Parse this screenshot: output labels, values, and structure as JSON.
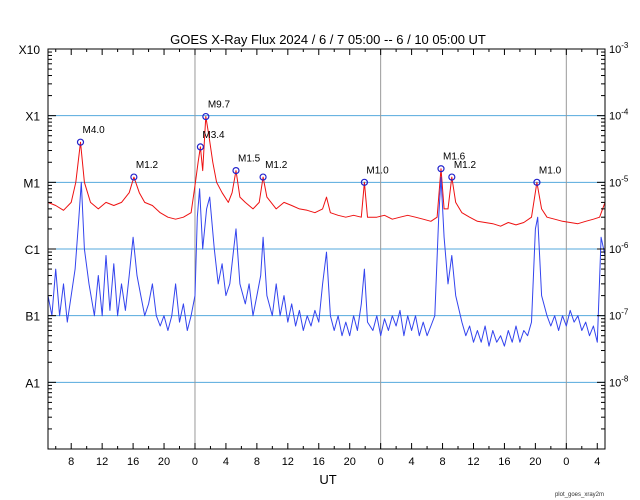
{
  "chart_data": {
    "type": "line",
    "title": "GOES X-Ray Flux   2024 /  6  /  7   05:00 --  6  / 10   05:00   UT",
    "xlabel": "UT",
    "x_tick_labels": [
      "8",
      "12",
      "16",
      "20",
      "0",
      "4",
      "8",
      "12",
      "16",
      "20",
      "0",
      "4",
      "8",
      "12",
      "16",
      "20",
      "0",
      "4"
    ],
    "x_tick_hours": [
      8,
      12,
      16,
      20,
      24,
      28,
      32,
      36,
      40,
      44,
      48,
      52,
      56,
      60,
      64,
      68,
      72,
      76
    ],
    "day_boundaries_hours": [
      24,
      48,
      72
    ],
    "xlim_hours": [
      5,
      77
    ],
    "y_scale": "log",
    "ylim": [
      1e-09,
      0.001
    ],
    "left_class_labels": [
      "A1",
      "B1",
      "C1",
      "M1",
      "X1",
      "X10"
    ],
    "right_tick_labels": [
      {
        "base": "10",
        "exp": "-8"
      },
      {
        "base": "10",
        "exp": "-7"
      },
      {
        "base": "10",
        "exp": "-6"
      },
      {
        "base": "10",
        "exp": "-5"
      },
      {
        "base": "10",
        "exp": "-4"
      },
      {
        "base": "10",
        "exp": "-3"
      }
    ],
    "colors": {
      "long": "#ee1111",
      "short": "#3344ee",
      "grid": "#55aadd",
      "day_line": "#999999",
      "marker": "#2222cc"
    },
    "flares": [
      {
        "label": "M4.0",
        "t": 9.2,
        "flux": 4e-05
      },
      {
        "label": "M1.2",
        "t": 16.1,
        "flux": 1.2e-05
      },
      {
        "label": "M3.4",
        "t": 24.7,
        "flux": 3.4e-05
      },
      {
        "label": "M9.7",
        "t": 25.4,
        "flux": 9.7e-05
      },
      {
        "label": "M1.5",
        "t": 29.3,
        "flux": 1.5e-05
      },
      {
        "label": "M1.2",
        "t": 32.8,
        "flux": 1.2e-05
      },
      {
        "label": "M1.0",
        "t": 45.9,
        "flux": 1e-05
      },
      {
        "label": "M1.6",
        "t": 55.8,
        "flux": 1.6e-05
      },
      {
        "label": "M1.2",
        "t": 57.2,
        "flux": 1.2e-05
      },
      {
        "label": "M1.0",
        "t": 68.2,
        "flux": 1e-05
      }
    ],
    "series": [
      {
        "band": "long",
        "points": [
          [
            5,
            5e-06
          ],
          [
            6,
            4.5e-06
          ],
          [
            7,
            3.8e-06
          ],
          [
            8,
            5e-06
          ],
          [
            8.6,
            1e-05
          ],
          [
            9.2,
            4e-05
          ],
          [
            9.7,
            1e-05
          ],
          [
            10.5,
            5e-06
          ],
          [
            11.5,
            4e-06
          ],
          [
            12.5,
            5e-06
          ],
          [
            13.5,
            4.5e-06
          ],
          [
            14.5,
            5e-06
          ],
          [
            15.5,
            7e-06
          ],
          [
            16.1,
            1.2e-05
          ],
          [
            16.8,
            7e-06
          ],
          [
            17.5,
            5e-06
          ],
          [
            18.5,
            4.5e-06
          ],
          [
            19.5,
            3.5e-06
          ],
          [
            20.5,
            3e-06
          ],
          [
            21.5,
            2.8e-06
          ],
          [
            22.5,
            3e-06
          ],
          [
            23.5,
            3.5e-06
          ],
          [
            24.0,
            9e-06
          ],
          [
            24.4,
            2e-05
          ],
          [
            24.7,
            3.4e-05
          ],
          [
            25.0,
            1.5e-05
          ],
          [
            25.4,
            9.7e-05
          ],
          [
            25.8,
            5e-05
          ],
          [
            26.3,
            2e-05
          ],
          [
            26.8,
            1e-05
          ],
          [
            27.5,
            7e-06
          ],
          [
            28.3,
            5e-06
          ],
          [
            28.8,
            7e-06
          ],
          [
            29.3,
            1.5e-05
          ],
          [
            29.8,
            6e-06
          ],
          [
            30.5,
            5e-06
          ],
          [
            31.5,
            4e-06
          ],
          [
            32.3,
            5e-06
          ],
          [
            32.8,
            1.2e-05
          ],
          [
            33.3,
            6e-06
          ],
          [
            34.5,
            4e-06
          ],
          [
            35.5,
            5e-06
          ],
          [
            36.5,
            4.5e-06
          ],
          [
            37.5,
            4e-06
          ],
          [
            38.5,
            3.8e-06
          ],
          [
            39.5,
            3.5e-06
          ],
          [
            40.5,
            4e-06
          ],
          [
            41.0,
            6e-06
          ],
          [
            41.5,
            3.5e-06
          ],
          [
            42.5,
            3.2e-06
          ],
          [
            43.5,
            3e-06
          ],
          [
            44.5,
            3.2e-06
          ],
          [
            45.5,
            3e-06
          ],
          [
            45.9,
            1e-05
          ],
          [
            46.3,
            3e-06
          ],
          [
            47.5,
            3e-06
          ],
          [
            48.5,
            3.2e-06
          ],
          [
            49.5,
            2.8e-06
          ],
          [
            50.5,
            3e-06
          ],
          [
            51.5,
            3.2e-06
          ],
          [
            52.5,
            3e-06
          ],
          [
            53.5,
            2.8e-06
          ],
          [
            54.5,
            2.6e-06
          ],
          [
            55.3,
            3e-06
          ],
          [
            55.8,
            1.6e-05
          ],
          [
            56.2,
            4e-06
          ],
          [
            56.7,
            4e-06
          ],
          [
            57.2,
            1.2e-05
          ],
          [
            57.7,
            5e-06
          ],
          [
            58.5,
            3.5e-06
          ],
          [
            59.5,
            3e-06
          ],
          [
            60.5,
            2.6e-06
          ],
          [
            61.5,
            2.5e-06
          ],
          [
            62.5,
            2.4e-06
          ],
          [
            63.5,
            2.2e-06
          ],
          [
            64.5,
            2.5e-06
          ],
          [
            65.5,
            2.3e-06
          ],
          [
            66.5,
            2.5e-06
          ],
          [
            67.5,
            3e-06
          ],
          [
            68.2,
            1e-05
          ],
          [
            68.8,
            4e-06
          ],
          [
            69.5,
            3e-06
          ],
          [
            70.5,
            2.8e-06
          ],
          [
            71.5,
            2.6e-06
          ],
          [
            72.5,
            2.5e-06
          ],
          [
            73.5,
            2.4e-06
          ],
          [
            74.5,
            2.6e-06
          ],
          [
            75.5,
            2.8e-06
          ],
          [
            76.3,
            3e-06
          ],
          [
            77,
            5e-06
          ]
        ]
      },
      {
        "band": "short",
        "points": [
          [
            5,
            2e-07
          ],
          [
            5.5,
            1e-07
          ],
          [
            6,
            5e-07
          ],
          [
            6.5,
            1e-07
          ],
          [
            7,
            3e-07
          ],
          [
            7.5,
            8e-08
          ],
          [
            8,
            2e-07
          ],
          [
            8.5,
            5e-07
          ],
          [
            9.0,
            3e-06
          ],
          [
            9.3,
            1e-05
          ],
          [
            9.7,
            1e-06
          ],
          [
            10.3,
            3e-07
          ],
          [
            11,
            1e-07
          ],
          [
            11.5,
            4e-07
          ],
          [
            12,
            1e-07
          ],
          [
            12.5,
            8e-07
          ],
          [
            13,
            1.2e-07
          ],
          [
            13.5,
            6e-07
          ],
          [
            14,
            1e-07
          ],
          [
            14.5,
            3e-07
          ],
          [
            15,
            1.2e-07
          ],
          [
            15.5,
            4e-07
          ],
          [
            16.0,
            1.5e-06
          ],
          [
            16.5,
            4e-07
          ],
          [
            17,
            2e-07
          ],
          [
            17.5,
            1e-07
          ],
          [
            18,
            1.5e-07
          ],
          [
            18.5,
            3e-07
          ],
          [
            19,
            1e-07
          ],
          [
            19.5,
            7e-08
          ],
          [
            20,
            1e-07
          ],
          [
            20.5,
            6e-08
          ],
          [
            21,
            1e-07
          ],
          [
            21.5,
            3e-07
          ],
          [
            22,
            8e-08
          ],
          [
            22.5,
            1.5e-07
          ],
          [
            23,
            6e-08
          ],
          [
            23.5,
            1e-07
          ],
          [
            24.0,
            2e-07
          ],
          [
            24.3,
            3e-06
          ],
          [
            24.6,
            8e-06
          ],
          [
            25.0,
            1e-06
          ],
          [
            25.5,
            4e-06
          ],
          [
            25.9,
            6e-06
          ],
          [
            26.5,
            1e-06
          ],
          [
            27,
            3e-07
          ],
          [
            27.5,
            6e-07
          ],
          [
            28,
            2e-07
          ],
          [
            28.5,
            3e-07
          ],
          [
            29.0,
            1e-06
          ],
          [
            29.3,
            2e-06
          ],
          [
            29.8,
            3e-07
          ],
          [
            30.5,
            1.5e-07
          ],
          [
            31,
            3e-07
          ],
          [
            31.5,
            1e-07
          ],
          [
            32,
            2e-07
          ],
          [
            32.5,
            4e-07
          ],
          [
            32.8,
            1.5e-06
          ],
          [
            33.3,
            2e-07
          ],
          [
            34,
            1e-07
          ],
          [
            34.5,
            3e-07
          ],
          [
            35,
            1e-07
          ],
          [
            35.5,
            2e-07
          ],
          [
            36,
            8e-08
          ],
          [
            36.5,
            1.5e-07
          ],
          [
            37,
            7e-08
          ],
          [
            37.5,
            1.2e-07
          ],
          [
            38,
            6e-08
          ],
          [
            38.5,
            1e-07
          ],
          [
            39,
            7e-08
          ],
          [
            39.5,
            1.2e-07
          ],
          [
            40,
            8e-08
          ],
          [
            40.5,
            3e-07
          ],
          [
            41.0,
            9e-07
          ],
          [
            41.5,
            1e-07
          ],
          [
            42,
            6e-08
          ],
          [
            42.5,
            1e-07
          ],
          [
            43,
            5e-08
          ],
          [
            43.5,
            8e-08
          ],
          [
            44,
            5e-08
          ],
          [
            44.5,
            1e-07
          ],
          [
            45,
            6e-08
          ],
          [
            45.5,
            1.5e-07
          ],
          [
            45.9,
            5e-07
          ],
          [
            46.3,
            8e-08
          ],
          [
            47,
            6e-08
          ],
          [
            47.5,
            1e-07
          ],
          [
            48,
            5e-08
          ],
          [
            48.5,
            9e-08
          ],
          [
            49,
            6e-08
          ],
          [
            49.5,
            1e-07
          ],
          [
            50,
            7e-08
          ],
          [
            50.5,
            1.2e-07
          ],
          [
            51,
            5e-08
          ],
          [
            51.5,
            1e-07
          ],
          [
            52,
            6e-08
          ],
          [
            52.5,
            1e-07
          ],
          [
            53,
            5e-08
          ],
          [
            53.5,
            8e-08
          ],
          [
            54,
            5e-08
          ],
          [
            54.5,
            7e-08
          ],
          [
            55.0,
            1e-07
          ],
          [
            55.5,
            3e-06
          ],
          [
            55.8,
            1.2e-05
          ],
          [
            56.2,
            1.5e-06
          ],
          [
            56.7,
            3e-07
          ],
          [
            57.2,
            8e-07
          ],
          [
            57.7,
            2e-07
          ],
          [
            58.5,
            8e-08
          ],
          [
            59,
            5e-08
          ],
          [
            59.5,
            7e-08
          ],
          [
            60,
            4e-08
          ],
          [
            60.5,
            6e-08
          ],
          [
            61,
            4e-08
          ],
          [
            61.5,
            7e-08
          ],
          [
            62,
            3.5e-08
          ],
          [
            62.5,
            6e-08
          ],
          [
            63,
            4e-08
          ],
          [
            63.5,
            5e-08
          ],
          [
            64,
            3.5e-08
          ],
          [
            64.5,
            6e-08
          ],
          [
            65,
            4e-08
          ],
          [
            65.5,
            7e-08
          ],
          [
            66,
            4e-08
          ],
          [
            66.5,
            6e-08
          ],
          [
            67,
            5e-08
          ],
          [
            67.5,
            8e-08
          ],
          [
            68.0,
            2e-06
          ],
          [
            68.3,
            3e-06
          ],
          [
            68.8,
            2e-07
          ],
          [
            69.5,
            1e-07
          ],
          [
            70,
            7e-08
          ],
          [
            70.5,
            1e-07
          ],
          [
            71,
            6e-08
          ],
          [
            71.5,
            1e-07
          ],
          [
            72,
            7e-08
          ],
          [
            72.5,
            1.2e-07
          ],
          [
            73,
            8e-08
          ],
          [
            73.5,
            1e-07
          ],
          [
            74,
            6e-08
          ],
          [
            74.5,
            8e-08
          ],
          [
            75,
            5e-08
          ],
          [
            75.5,
            7e-08
          ],
          [
            76,
            4e-08
          ],
          [
            76.5,
            1.5e-06
          ],
          [
            77,
            8e-07
          ]
        ]
      }
    ]
  },
  "footer": "plot_goes_xray2m"
}
